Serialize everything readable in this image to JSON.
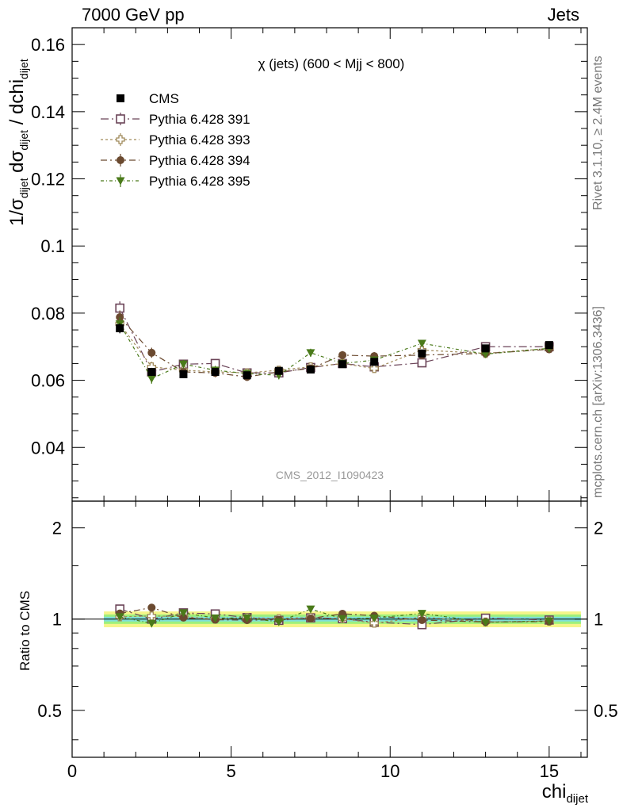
{
  "header": {
    "left": "7000 GeV pp",
    "right": "Jets"
  },
  "side_labels": {
    "rivet": "Rivet 3.1.10, ≥ 2.4M events",
    "mcplots": "mcplots.cern.ch [arXiv:1306.3436]"
  },
  "chart_data": {
    "type": "scatter",
    "title": "χ (jets) (600 < Mjj <  800)",
    "watermark": "CMS_2012_I1090423",
    "xlabel_main": "chi",
    "xlabel_sub": "dijet",
    "ylabel_top": "1/σdijet dσdijet / dchidijet",
    "ylabel_bottom": "Ratio to CMS",
    "xlim": [
      0,
      16.2
    ],
    "ylim_top": [
      0.024,
      0.165
    ],
    "ylim_bottom": [
      0.35,
      2.45
    ],
    "y_scale_bottom": "log",
    "x_ticks": [
      "0",
      "5",
      "10",
      "15"
    ],
    "y_ticks_top": [
      "0.04",
      "0.06",
      "0.08",
      "0.1",
      "0.12",
      "0.14",
      "0.16"
    ],
    "y_ticks_bottom": [
      "0.5",
      "1",
      "2"
    ],
    "x": [
      1.5,
      2.5,
      3.5,
      4.5,
      5.5,
      6.5,
      7.5,
      8.5,
      9.5,
      11.0,
      13.0,
      15.0
    ],
    "x_bins": [
      [
        1,
        2
      ],
      [
        2,
        3
      ],
      [
        3,
        4
      ],
      [
        4,
        5
      ],
      [
        5,
        6
      ],
      [
        6,
        7
      ],
      [
        7,
        8
      ],
      [
        8,
        9
      ],
      [
        9,
        10
      ],
      [
        10,
        12
      ],
      [
        12,
        14
      ],
      [
        14,
        16
      ]
    ],
    "band_rel_err": [
      0.06,
      0.06,
      0.06,
      0.06,
      0.06,
      0.06,
      0.06,
      0.06,
      0.06,
      0.06,
      0.06,
      0.06
    ],
    "legend_position": "top-left",
    "series": [
      {
        "name": "CMS",
        "color": "#000000",
        "marker": "filled-square",
        "values": [
          0.0755,
          0.0625,
          0.0618,
          0.0625,
          0.0615,
          0.0628,
          0.0632,
          0.0648,
          0.0655,
          0.068,
          0.0695,
          0.0705
        ],
        "err": [
          0.0015,
          0.0012,
          0.001,
          0.001,
          0.001,
          0.001,
          0.001,
          0.001,
          0.001,
          0.001,
          0.001,
          0.001
        ]
      },
      {
        "name": "Pythia 6.428 391",
        "color": "#6b4458",
        "marker": "open-square",
        "dash": "10,4,2,4",
        "values": [
          0.0815,
          0.0625,
          0.0648,
          0.065,
          0.0622,
          0.0622,
          0.0638,
          0.065,
          0.064,
          0.0652,
          0.07,
          0.07
        ],
        "err": [
          0.002,
          0.0015,
          0.0013,
          0.0013,
          0.0012,
          0.0012,
          0.0012,
          0.0012,
          0.0012,
          0.0009,
          0.0008,
          0.0008
        ]
      },
      {
        "name": "Pythia 6.428 393",
        "color": "#a08a5a",
        "marker": "open-cross",
        "dash": "3,3",
        "values": [
          0.0768,
          0.064,
          0.063,
          0.0625,
          0.0622,
          0.063,
          0.064,
          0.065,
          0.0635,
          0.069,
          0.068,
          0.0695
        ],
        "err": [
          0.002,
          0.0015,
          0.0013,
          0.0013,
          0.0012,
          0.0012,
          0.0012,
          0.0012,
          0.0012,
          0.0009,
          0.0008,
          0.0008
        ]
      },
      {
        "name": "Pythia 6.428 394",
        "color": "#6b4a30",
        "marker": "filled-circle",
        "dash": "8,4,2,4",
        "values": [
          0.0788,
          0.0682,
          0.0625,
          0.0622,
          0.061,
          0.0625,
          0.0635,
          0.0675,
          0.0672,
          0.0675,
          0.068,
          0.0692
        ],
        "err": [
          0.002,
          0.0015,
          0.0013,
          0.0013,
          0.0012,
          0.0012,
          0.0012,
          0.0012,
          0.0012,
          0.0009,
          0.0008,
          0.0008
        ]
      },
      {
        "name": "Pythia 6.428 395",
        "color": "#4a7a1a",
        "marker": "filled-down-triangle",
        "dash": "4,3,1,3",
        "values": [
          0.0768,
          0.0605,
          0.0648,
          0.063,
          0.062,
          0.0615,
          0.0682,
          0.065,
          0.066,
          0.071,
          0.0678,
          0.0695
        ],
        "err": [
          0.002,
          0.0015,
          0.0013,
          0.0013,
          0.0012,
          0.0012,
          0.0012,
          0.0012,
          0.0012,
          0.0009,
          0.0008,
          0.0008
        ]
      }
    ]
  }
}
